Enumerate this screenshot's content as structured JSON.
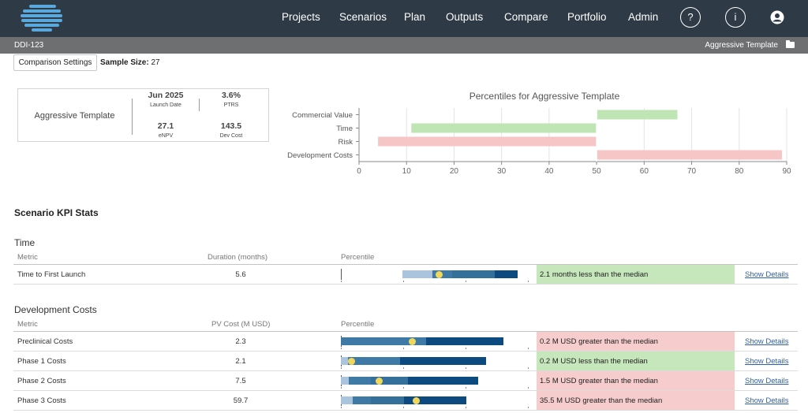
{
  "nav": {
    "items": [
      "Projects",
      "Scenarios",
      "Plan",
      "Outputs",
      "Compare",
      "Portfolio",
      "Admin"
    ],
    "help_icon": "?",
    "info_icon": "i"
  },
  "subbar": {
    "id": "DDI-123",
    "template": "Aggressive Template"
  },
  "toolbar": {
    "comparison_settings": "Comparison Settings",
    "sample_label": "Sample Size:",
    "sample_value": " 27"
  },
  "summary": {
    "name": "Aggressive Template",
    "launch_date": "Jun 2025",
    "launch_date_label": "Launch Date",
    "ptrs": "3.6%",
    "ptrs_label": "PTRS",
    "enpv": "27.1",
    "enpv_label": "eNPV",
    "dev_cost": "143.5",
    "dev_cost_label": "Dev Cost"
  },
  "chart_data": {
    "type": "bar",
    "title": "Percentiles for Aggressive Template",
    "categories": [
      "Commercial Value",
      "Time",
      "Risk",
      "Development Costs"
    ],
    "ranges": [
      [
        50,
        67
      ],
      [
        11,
        50
      ],
      [
        4,
        50
      ],
      [
        50,
        89
      ]
    ],
    "colors": [
      "#bfe5b5",
      "#bfe5b5",
      "#f6c6c6",
      "#f6c6c6"
    ],
    "xlim": [
      0,
      90
    ],
    "xticks": [
      0,
      10,
      20,
      30,
      40,
      50,
      60,
      70,
      80,
      90
    ],
    "grid": true
  },
  "kpi": {
    "title": "Scenario KPI Stats",
    "metric_header": "Metric",
    "percentile_header": "Percentile",
    "show_details": "Show Details",
    "time": {
      "title": "Time",
      "value_header": "Duration (months)",
      "rows": [
        {
          "metric": "Time to First Launch",
          "value": "5.6",
          "message": "2.1 months less than the median",
          "status": "good"
        }
      ]
    },
    "dev": {
      "title": "Development Costs",
      "value_header": "PV Cost (M USD)",
      "rows": [
        {
          "metric": "Preclinical Costs",
          "value": "2.3",
          "message": "0.2 M USD greater than the median",
          "status": "bad"
        },
        {
          "metric": "Phase 1 Costs",
          "value": "2.1",
          "message": "0.2 M USD less than the median",
          "status": "good"
        },
        {
          "metric": "Phase 2 Costs",
          "value": "7.5",
          "message": "1.5 M USD greater than the median",
          "status": "bad"
        },
        {
          "metric": "Phase 3 Costs",
          "value": "59.7",
          "message": "35.5 M USD greater than the median",
          "status": "bad"
        }
      ]
    }
  },
  "colors": {
    "nav_bg": "#2e3a45",
    "good": "#c6e6bb",
    "bad": "#f6cccc",
    "bar_light": "#a9c4dc",
    "bar_mid": "#3f7aa6",
    "bar_dark": "#0d4a80",
    "marker": "#f1d85a"
  }
}
